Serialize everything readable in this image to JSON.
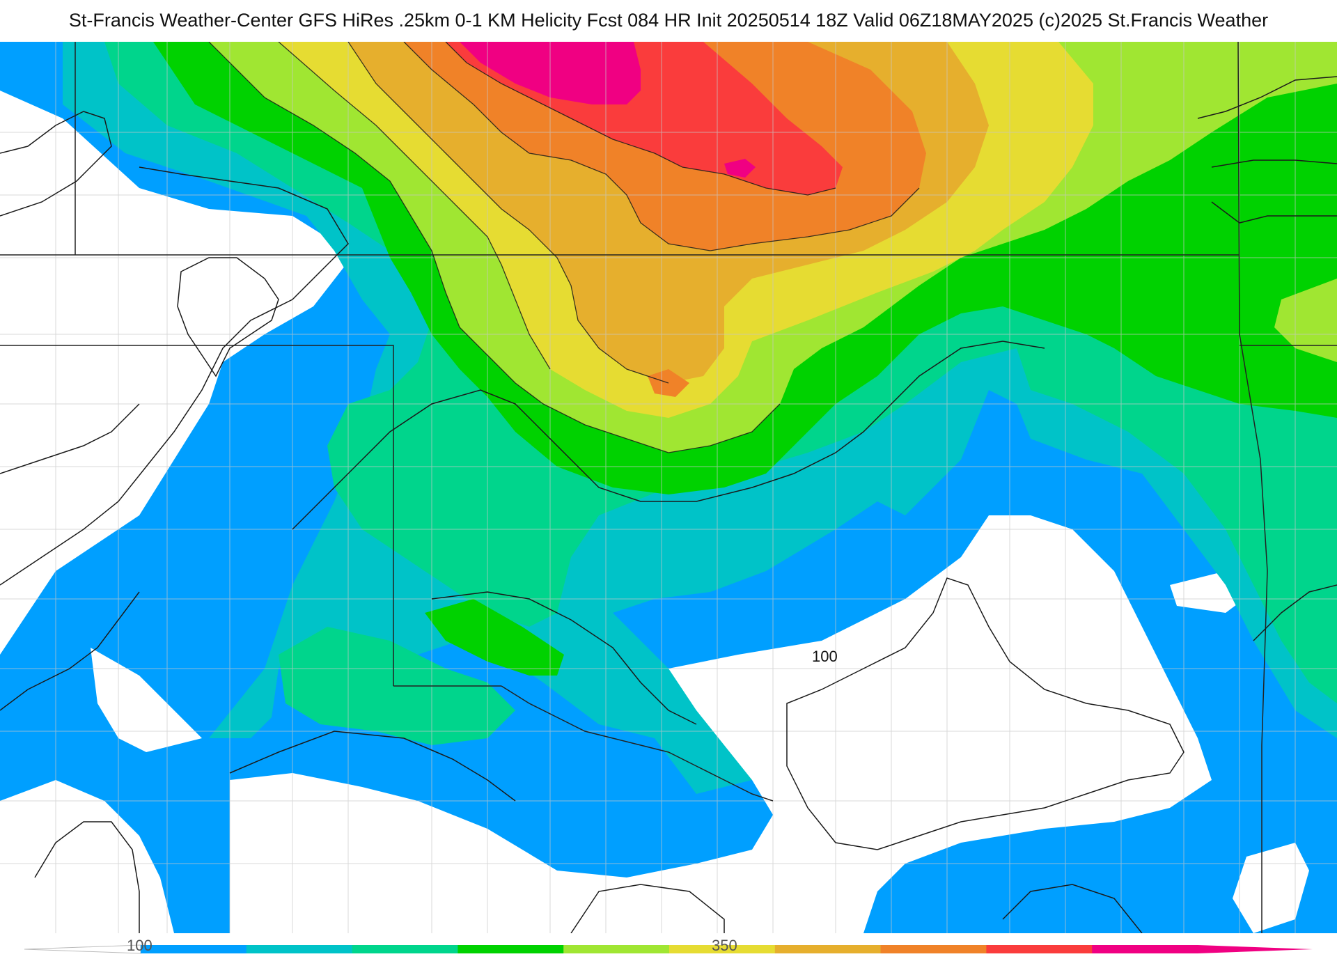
{
  "header": {
    "title": "St-Francis Weather-Center GFS HiRes .25km 0-1 KM Helicity Fcst 084 HR Init 20250514 18Z  Valid 06Z18MAY2025    (c)2025 St.Francis Weather"
  },
  "map": {
    "contour_label": "100"
  },
  "colorbar": {
    "tick_labels": [
      "100",
      "350"
    ],
    "colors": [
      "#009fff",
      "#00c3c8",
      "#00d58c",
      "#00d200",
      "#a0e632",
      "#e6dc32",
      "#e6af2d",
      "#f08228",
      "#fa3c3c",
      "#f00082"
    ]
  }
}
